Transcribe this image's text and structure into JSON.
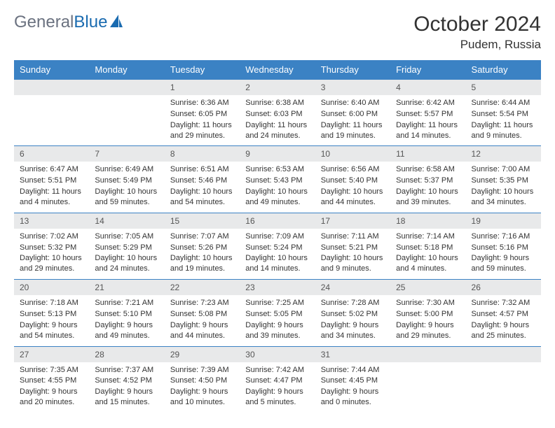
{
  "brand": {
    "part1": "General",
    "part2": "Blue"
  },
  "colors": {
    "header_bg": "#3b82c4",
    "header_text": "#ffffff",
    "daynum_bg": "#e8e9ea",
    "row_border": "#3b82c4",
    "logo_gray": "#6b7280",
    "logo_blue": "#1a6bb0"
  },
  "title": "October 2024",
  "location": "Pudem, Russia",
  "weekdays": [
    "Sunday",
    "Monday",
    "Tuesday",
    "Wednesday",
    "Thursday",
    "Friday",
    "Saturday"
  ],
  "weeks": [
    [
      {
        "day": "",
        "sunrise": "",
        "sunset": "",
        "daylight": ""
      },
      {
        "day": "",
        "sunrise": "",
        "sunset": "",
        "daylight": ""
      },
      {
        "day": "1",
        "sunrise": "Sunrise: 6:36 AM",
        "sunset": "Sunset: 6:05 PM",
        "daylight": "Daylight: 11 hours and 29 minutes."
      },
      {
        "day": "2",
        "sunrise": "Sunrise: 6:38 AM",
        "sunset": "Sunset: 6:03 PM",
        "daylight": "Daylight: 11 hours and 24 minutes."
      },
      {
        "day": "3",
        "sunrise": "Sunrise: 6:40 AM",
        "sunset": "Sunset: 6:00 PM",
        "daylight": "Daylight: 11 hours and 19 minutes."
      },
      {
        "day": "4",
        "sunrise": "Sunrise: 6:42 AM",
        "sunset": "Sunset: 5:57 PM",
        "daylight": "Daylight: 11 hours and 14 minutes."
      },
      {
        "day": "5",
        "sunrise": "Sunrise: 6:44 AM",
        "sunset": "Sunset: 5:54 PM",
        "daylight": "Daylight: 11 hours and 9 minutes."
      }
    ],
    [
      {
        "day": "6",
        "sunrise": "Sunrise: 6:47 AM",
        "sunset": "Sunset: 5:51 PM",
        "daylight": "Daylight: 11 hours and 4 minutes."
      },
      {
        "day": "7",
        "sunrise": "Sunrise: 6:49 AM",
        "sunset": "Sunset: 5:49 PM",
        "daylight": "Daylight: 10 hours and 59 minutes."
      },
      {
        "day": "8",
        "sunrise": "Sunrise: 6:51 AM",
        "sunset": "Sunset: 5:46 PM",
        "daylight": "Daylight: 10 hours and 54 minutes."
      },
      {
        "day": "9",
        "sunrise": "Sunrise: 6:53 AM",
        "sunset": "Sunset: 5:43 PM",
        "daylight": "Daylight: 10 hours and 49 minutes."
      },
      {
        "day": "10",
        "sunrise": "Sunrise: 6:56 AM",
        "sunset": "Sunset: 5:40 PM",
        "daylight": "Daylight: 10 hours and 44 minutes."
      },
      {
        "day": "11",
        "sunrise": "Sunrise: 6:58 AM",
        "sunset": "Sunset: 5:37 PM",
        "daylight": "Daylight: 10 hours and 39 minutes."
      },
      {
        "day": "12",
        "sunrise": "Sunrise: 7:00 AM",
        "sunset": "Sunset: 5:35 PM",
        "daylight": "Daylight: 10 hours and 34 minutes."
      }
    ],
    [
      {
        "day": "13",
        "sunrise": "Sunrise: 7:02 AM",
        "sunset": "Sunset: 5:32 PM",
        "daylight": "Daylight: 10 hours and 29 minutes."
      },
      {
        "day": "14",
        "sunrise": "Sunrise: 7:05 AM",
        "sunset": "Sunset: 5:29 PM",
        "daylight": "Daylight: 10 hours and 24 minutes."
      },
      {
        "day": "15",
        "sunrise": "Sunrise: 7:07 AM",
        "sunset": "Sunset: 5:26 PM",
        "daylight": "Daylight: 10 hours and 19 minutes."
      },
      {
        "day": "16",
        "sunrise": "Sunrise: 7:09 AM",
        "sunset": "Sunset: 5:24 PM",
        "daylight": "Daylight: 10 hours and 14 minutes."
      },
      {
        "day": "17",
        "sunrise": "Sunrise: 7:11 AM",
        "sunset": "Sunset: 5:21 PM",
        "daylight": "Daylight: 10 hours and 9 minutes."
      },
      {
        "day": "18",
        "sunrise": "Sunrise: 7:14 AM",
        "sunset": "Sunset: 5:18 PM",
        "daylight": "Daylight: 10 hours and 4 minutes."
      },
      {
        "day": "19",
        "sunrise": "Sunrise: 7:16 AM",
        "sunset": "Sunset: 5:16 PM",
        "daylight": "Daylight: 9 hours and 59 minutes."
      }
    ],
    [
      {
        "day": "20",
        "sunrise": "Sunrise: 7:18 AM",
        "sunset": "Sunset: 5:13 PM",
        "daylight": "Daylight: 9 hours and 54 minutes."
      },
      {
        "day": "21",
        "sunrise": "Sunrise: 7:21 AM",
        "sunset": "Sunset: 5:10 PM",
        "daylight": "Daylight: 9 hours and 49 minutes."
      },
      {
        "day": "22",
        "sunrise": "Sunrise: 7:23 AM",
        "sunset": "Sunset: 5:08 PM",
        "daylight": "Daylight: 9 hours and 44 minutes."
      },
      {
        "day": "23",
        "sunrise": "Sunrise: 7:25 AM",
        "sunset": "Sunset: 5:05 PM",
        "daylight": "Daylight: 9 hours and 39 minutes."
      },
      {
        "day": "24",
        "sunrise": "Sunrise: 7:28 AM",
        "sunset": "Sunset: 5:02 PM",
        "daylight": "Daylight: 9 hours and 34 minutes."
      },
      {
        "day": "25",
        "sunrise": "Sunrise: 7:30 AM",
        "sunset": "Sunset: 5:00 PM",
        "daylight": "Daylight: 9 hours and 29 minutes."
      },
      {
        "day": "26",
        "sunrise": "Sunrise: 7:32 AM",
        "sunset": "Sunset: 4:57 PM",
        "daylight": "Daylight: 9 hours and 25 minutes."
      }
    ],
    [
      {
        "day": "27",
        "sunrise": "Sunrise: 7:35 AM",
        "sunset": "Sunset: 4:55 PM",
        "daylight": "Daylight: 9 hours and 20 minutes."
      },
      {
        "day": "28",
        "sunrise": "Sunrise: 7:37 AM",
        "sunset": "Sunset: 4:52 PM",
        "daylight": "Daylight: 9 hours and 15 minutes."
      },
      {
        "day": "29",
        "sunrise": "Sunrise: 7:39 AM",
        "sunset": "Sunset: 4:50 PM",
        "daylight": "Daylight: 9 hours and 10 minutes."
      },
      {
        "day": "30",
        "sunrise": "Sunrise: 7:42 AM",
        "sunset": "Sunset: 4:47 PM",
        "daylight": "Daylight: 9 hours and 5 minutes."
      },
      {
        "day": "31",
        "sunrise": "Sunrise: 7:44 AM",
        "sunset": "Sunset: 4:45 PM",
        "daylight": "Daylight: 9 hours and 0 minutes."
      },
      {
        "day": "",
        "sunrise": "",
        "sunset": "",
        "daylight": ""
      },
      {
        "day": "",
        "sunrise": "",
        "sunset": "",
        "daylight": ""
      }
    ]
  ]
}
